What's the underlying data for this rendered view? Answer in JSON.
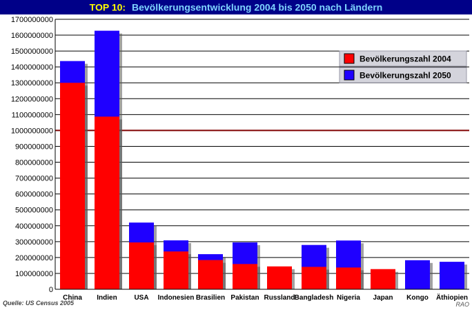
{
  "chart_data": {
    "type": "bar",
    "title_prefix": "TOP 10:",
    "title_main": "Bevölkerungsentwicklung 2004 bis 2050 nach Ländern",
    "categories": [
      "China",
      "Indien",
      "USA",
      "Indonesien",
      "Brasilien",
      "Pakistan",
      "Russland",
      "Bangladesh",
      "Nigeria",
      "Japan",
      "Kongo",
      "Äthiopien"
    ],
    "series": [
      {
        "name": "Bevölkerungszahl 2004",
        "color": "#ff0000",
        "values": [
          1300000000,
          1087000000,
          295000000,
          238000000,
          184000000,
          159000000,
          144000000,
          141000000,
          137000000,
          127000000,
          0,
          0
        ]
      },
      {
        "name": "Bevölkerungszahl 2050",
        "color": "#1f00ff",
        "values": [
          1437000000,
          1628000000,
          420000000,
          308000000,
          221000000,
          295000000,
          0,
          279000000,
          307000000,
          0,
          183000000,
          173000000
        ]
      }
    ],
    "ylim": [
      0,
      1700000000
    ],
    "ytick_step": 100000000,
    "ytick_labels": [
      "0",
      "100000000",
      "200000000",
      "300000000",
      "400000000",
      "500000000",
      "600000000",
      "700000000",
      "800000000",
      "900000000",
      "1000000000",
      "1100000000",
      "1200000000",
      "1300000000",
      "1400000000",
      "1500000000",
      "1600000000",
      "1700000000"
    ],
    "highlight_line_value": 1000000000,
    "highlight_line_color": "#800000",
    "legend_position": "top-right",
    "grid": true,
    "source_note": "Quelle: US Census 2005",
    "author_mark": "RAO"
  }
}
